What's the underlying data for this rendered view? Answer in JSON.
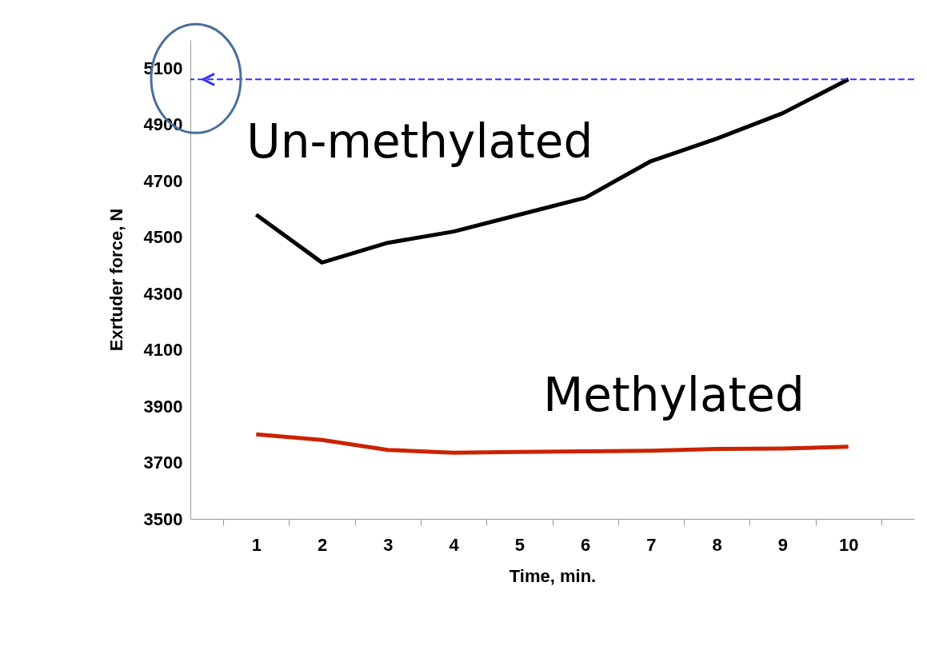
{
  "chart_data": {
    "type": "line",
    "xlabel": "Time, min.",
    "ylabel": "Exrtuder force, N",
    "categories": [
      "1",
      "2",
      "3",
      "4",
      "5",
      "6",
      "7",
      "8",
      "9",
      "10"
    ],
    "series": [
      {
        "name": "Un-methylated",
        "color": "#000000",
        "values": [
          4580,
          4410,
          4480,
          4520,
          4580,
          4640,
          4770,
          4850,
          4940,
          5060
        ]
      },
      {
        "name": "Methylated",
        "color": "#cc2200",
        "values": [
          3800,
          3780,
          3745,
          3735,
          3738,
          3740,
          3742,
          3748,
          3750,
          3756
        ]
      }
    ],
    "ylim": [
      3500,
      5200
    ],
    "yticks": [
      3500,
      3700,
      3900,
      4100,
      4300,
      4500,
      4700,
      4900,
      5100
    ],
    "grid": false,
    "marker": "none",
    "line_style": "solid",
    "ref_lines": [
      {
        "axis": "y",
        "value": 5060,
        "color": "#3333ff",
        "line_style": "dashed"
      }
    ]
  }
}
